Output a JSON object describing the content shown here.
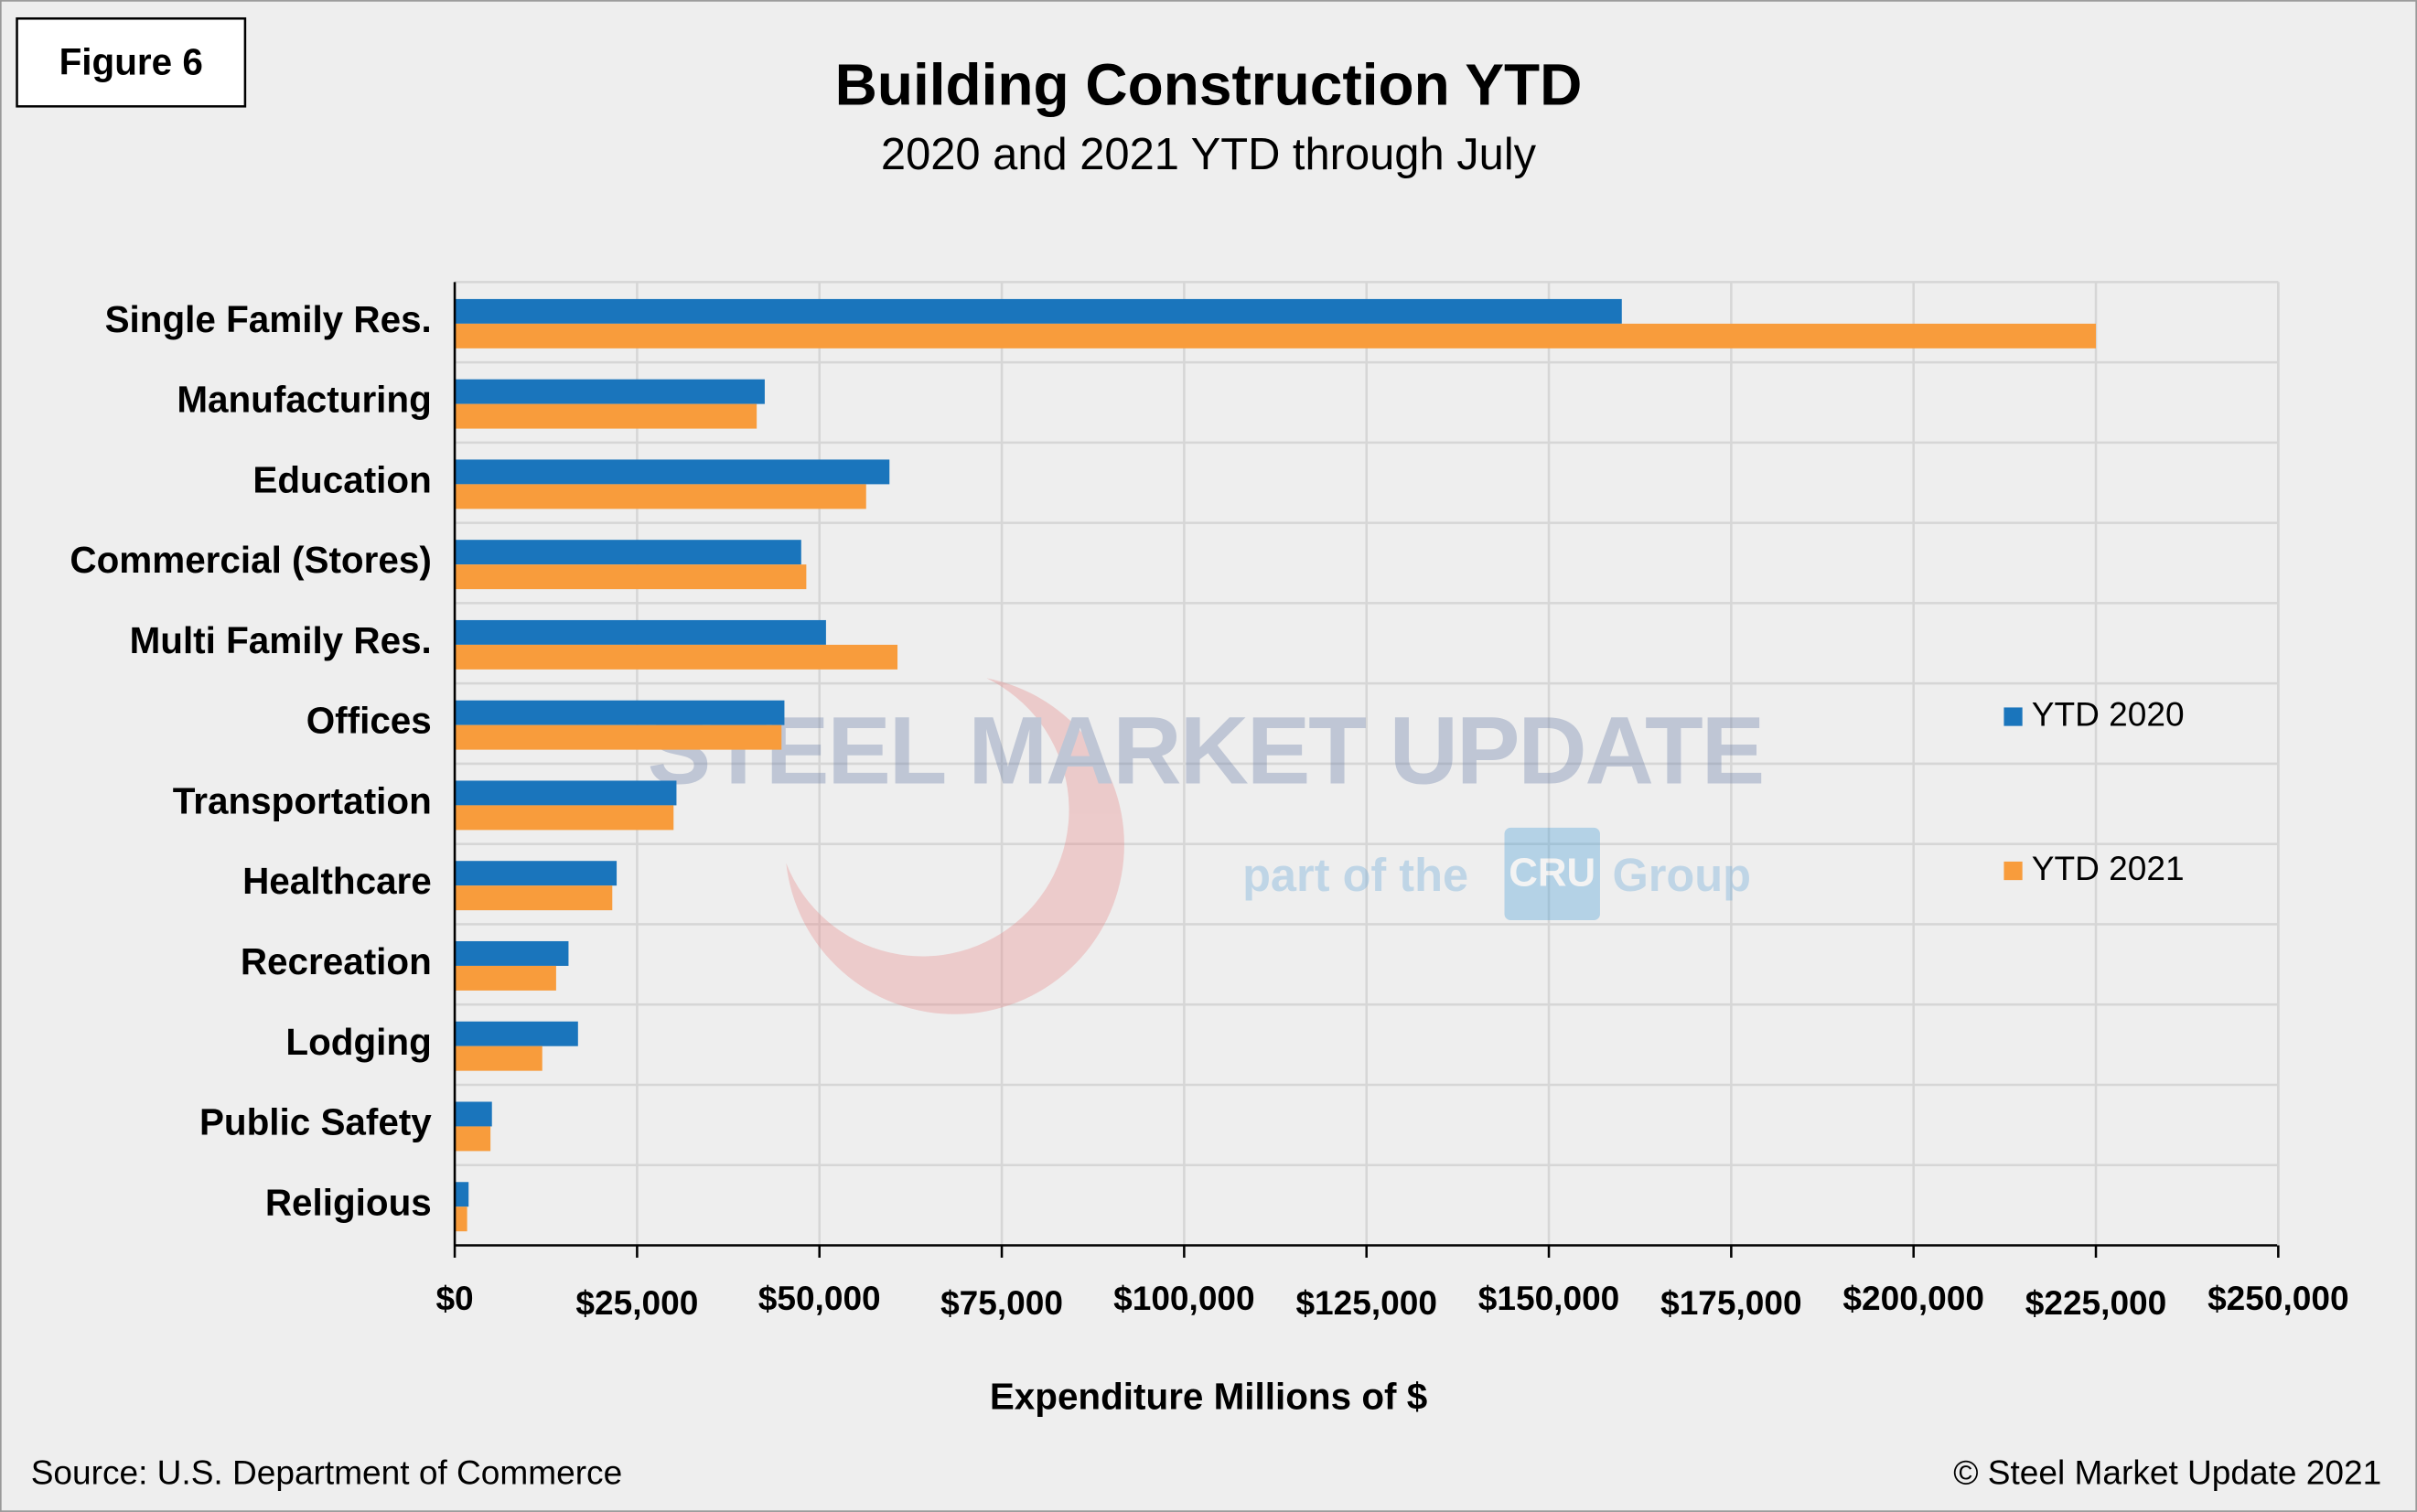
{
  "figure_label": "Figure 6",
  "watermark": {
    "brand": "STEEL MARKET UPDATE",
    "tagline_start": "part of the",
    "logo": "CRU",
    "tagline_end": "Group"
  },
  "source": "Source: U.S. Department of Commerce",
  "copyright": "© Steel Market Update 2021",
  "chart_data": {
    "type": "hbar",
    "title": "Building Construction YTD",
    "subtitle": "2020 and 2021 YTD through July",
    "x_label": "Expenditure Millions of $",
    "categories": [
      "Single Family Res.",
      "Manufacturing",
      "Education",
      "Commercial (Stores)",
      "Multi Family Res.",
      "Offices",
      "Transportation",
      "Healthcare",
      "Recreation",
      "Lodging",
      "Public Safety",
      "Religious"
    ],
    "series": [
      {
        "name": "YTD 2020",
        "color": "#1a75bc",
        "values": [
          160000,
          42500,
          59600,
          47500,
          50900,
          45200,
          30400,
          22200,
          15600,
          16900,
          5100,
          1900
        ]
      },
      {
        "name": "YTD 2021",
        "color": "#f89c3c",
        "values": [
          225000,
          41400,
          56400,
          48200,
          60700,
          44800,
          30000,
          21600,
          13900,
          12000,
          4900,
          1700
        ]
      }
    ],
    "xlim": [
      0,
      250000
    ],
    "xticks": [
      {
        "value": 0,
        "label": "$0"
      },
      {
        "value": 25000,
        "label": "$25,000"
      },
      {
        "value": 50000,
        "label": "$50,000"
      },
      {
        "value": 75000,
        "label": "$75,000"
      },
      {
        "value": 100000,
        "label": "$100,000"
      },
      {
        "value": 125000,
        "label": "$125,000"
      },
      {
        "value": 150000,
        "label": "$150,000"
      },
      {
        "value": 175000,
        "label": "$175,000"
      },
      {
        "value": 200000,
        "label": "$200,000"
      },
      {
        "value": 225000,
        "label": "$225,000"
      },
      {
        "value": 250000,
        "label": "$250,000"
      }
    ],
    "grid": true,
    "legend": "right"
  }
}
